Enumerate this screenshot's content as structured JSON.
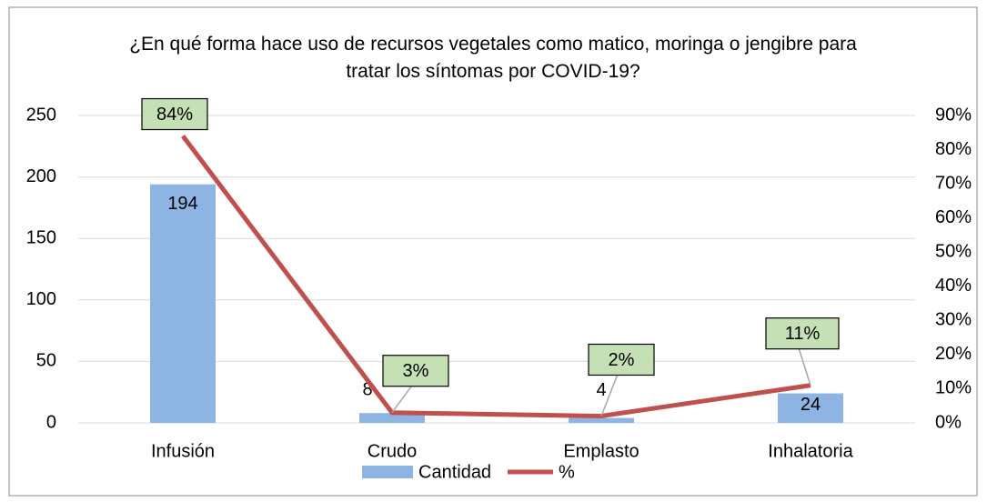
{
  "chart_data": {
    "type": "bar",
    "title": "¿En qué forma hace uso de recursos vegetales como matico, moringa o jengibre para tratar los síntomas por COVID-19?",
    "categories": [
      "Infusión",
      "Crudo",
      "Emplasto",
      "Inhalatoria"
    ],
    "series": [
      {
        "name": "Cantidad",
        "type": "bar",
        "color": "#8eb4e3",
        "values": [
          194,
          8,
          4,
          24
        ]
      },
      {
        "name": "%",
        "type": "line",
        "axis": "y2",
        "color": "#c0504d",
        "values": [
          84,
          3,
          2,
          11
        ],
        "value_labels": [
          "84%",
          "3%",
          "2%",
          "11%"
        ]
      }
    ],
    "ylim": [
      0,
      250
    ],
    "yticks": [
      0,
      50,
      100,
      150,
      200,
      250
    ],
    "y2lim": [
      0,
      90
    ],
    "y2ticks": [
      {
        "value": 0,
        "label": "0%"
      },
      {
        "value": 10,
        "label": "10%"
      },
      {
        "value": 20,
        "label": "20%"
      },
      {
        "value": 30,
        "label": "30%"
      },
      {
        "value": 40,
        "label": "40%"
      },
      {
        "value": 50,
        "label": "50%"
      },
      {
        "value": 60,
        "label": "60%"
      },
      {
        "value": 70,
        "label": "70%"
      },
      {
        "value": 80,
        "label": "80%"
      },
      {
        "value": 90,
        "label": "90%"
      }
    ],
    "grid": true,
    "legend": "bottom"
  }
}
